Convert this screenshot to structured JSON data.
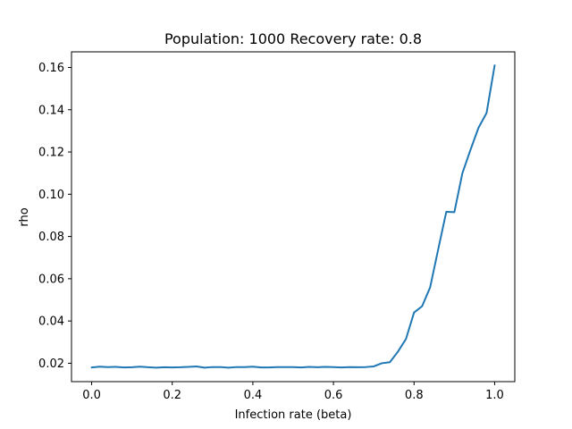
{
  "chart_data": {
    "type": "line",
    "title": "Population: 1000 Recovery rate: 0.8",
    "xlabel": "Infection rate (beta)",
    "ylabel": "rho",
    "xlim": [
      -0.05,
      1.05
    ],
    "ylim": [
      0.0113,
      0.1674
    ],
    "xticks": [
      0.0,
      0.2,
      0.4,
      0.6,
      0.8,
      1.0
    ],
    "xtick_labels": [
      "0.0",
      "0.2",
      "0.4",
      "0.6",
      "0.8",
      "1.0"
    ],
    "yticks": [
      0.02,
      0.04,
      0.06,
      0.08,
      0.1,
      0.12,
      0.14,
      0.16
    ],
    "ytick_labels": [
      "0.02",
      "0.04",
      "0.06",
      "0.08",
      "0.10",
      "0.12",
      "0.14",
      "0.16"
    ],
    "grid": false,
    "series": [
      {
        "color": "#1f77b4",
        "x": [
          0.0,
          0.02,
          0.04,
          0.06,
          0.08,
          0.1,
          0.12,
          0.14,
          0.16,
          0.18,
          0.2,
          0.22,
          0.24,
          0.26,
          0.28,
          0.3,
          0.32,
          0.34,
          0.36,
          0.38,
          0.4,
          0.42,
          0.44,
          0.46,
          0.48,
          0.5,
          0.52,
          0.54,
          0.56,
          0.58,
          0.6,
          0.62,
          0.64,
          0.66,
          0.68,
          0.7,
          0.72,
          0.74,
          0.76,
          0.78,
          0.8,
          0.82,
          0.84,
          0.86,
          0.88,
          0.9,
          0.92,
          0.94,
          0.96,
          0.98,
          1.0
        ],
        "values": [
          0.018,
          0.0184,
          0.0182,
          0.0183,
          0.018,
          0.0181,
          0.0184,
          0.0181,
          0.0179,
          0.0181,
          0.018,
          0.0181,
          0.0183,
          0.0185,
          0.0179,
          0.0182,
          0.0182,
          0.0179,
          0.0182,
          0.0182,
          0.0184,
          0.018,
          0.018,
          0.0182,
          0.0182,
          0.0182,
          0.018,
          0.0183,
          0.0181,
          0.0183,
          0.0182,
          0.018,
          0.0182,
          0.0181,
          0.0182,
          0.0185,
          0.02,
          0.0205,
          0.0255,
          0.0315,
          0.044,
          0.047,
          0.056,
          0.074,
          0.0917,
          0.0915,
          0.11,
          0.121,
          0.1315,
          0.1385,
          0.161
        ]
      }
    ]
  }
}
